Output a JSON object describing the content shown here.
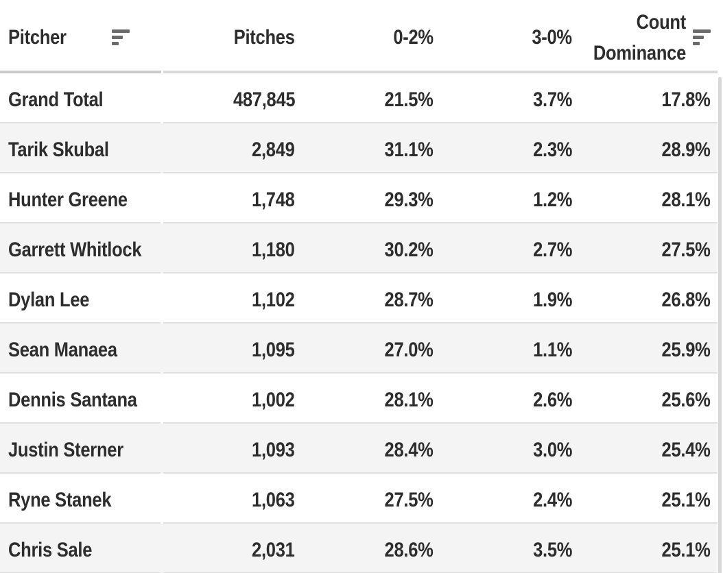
{
  "table": {
    "columns": [
      {
        "key": "pitcher",
        "label": "Pitcher",
        "align": "left",
        "sortable": true
      },
      {
        "key": "pitches",
        "label": "Pitches",
        "align": "right",
        "sortable": false
      },
      {
        "key": "pct_0_2",
        "label": "0-2%",
        "align": "right",
        "sortable": false
      },
      {
        "key": "pct_3_0",
        "label": "3-0%",
        "align": "right",
        "sortable": false
      },
      {
        "key": "count_dominance",
        "label": "Count Dominance",
        "align": "right",
        "sortable": true
      }
    ],
    "rows": [
      {
        "pitcher": "Grand Total",
        "pitches": "487,845",
        "pct_0_2": "21.5%",
        "pct_3_0": "3.7%",
        "count_dominance": "17.8%"
      },
      {
        "pitcher": "Tarik Skubal",
        "pitches": "2,849",
        "pct_0_2": "31.1%",
        "pct_3_0": "2.3%",
        "count_dominance": "28.9%"
      },
      {
        "pitcher": "Hunter Greene",
        "pitches": "1,748",
        "pct_0_2": "29.3%",
        "pct_3_0": "1.2%",
        "count_dominance": "28.1%"
      },
      {
        "pitcher": "Garrett Whitlock",
        "pitches": "1,180",
        "pct_0_2": "30.2%",
        "pct_3_0": "2.7%",
        "count_dominance": "27.5%"
      },
      {
        "pitcher": "Dylan Lee",
        "pitches": "1,102",
        "pct_0_2": "28.7%",
        "pct_3_0": "1.9%",
        "count_dominance": "26.8%"
      },
      {
        "pitcher": "Sean Manaea",
        "pitches": "1,095",
        "pct_0_2": "27.0%",
        "pct_3_0": "1.1%",
        "count_dominance": "25.9%"
      },
      {
        "pitcher": "Dennis Santana",
        "pitches": "1,002",
        "pct_0_2": "28.1%",
        "pct_3_0": "2.6%",
        "count_dominance": "25.6%"
      },
      {
        "pitcher": "Justin Sterner",
        "pitches": "1,093",
        "pct_0_2": "28.4%",
        "pct_3_0": "3.0%",
        "count_dominance": "25.4%"
      },
      {
        "pitcher": "Ryne Stanek",
        "pitches": "1,063",
        "pct_0_2": "27.5%",
        "pct_3_0": "2.4%",
        "count_dominance": "25.1%"
      },
      {
        "pitcher": "Chris Sale",
        "pitches": "2,031",
        "pct_0_2": "28.6%",
        "pct_3_0": "3.5%",
        "count_dominance": "25.1%"
      }
    ]
  },
  "icons": {
    "pitcher_sort": "sort-descending-bars",
    "count_dominance_sort": "sort-descending-bars"
  },
  "colors": {
    "text": "#2d2d2d",
    "row_alt_background": "#f4f4f4",
    "row_divider": "#e0e0e0",
    "header_divider_left": "#cbcbcb",
    "header_divider_right": "#d9d9d9",
    "sort_icon": "#6b6b6b",
    "scrollbar_thumb": "#d8d8d8"
  }
}
